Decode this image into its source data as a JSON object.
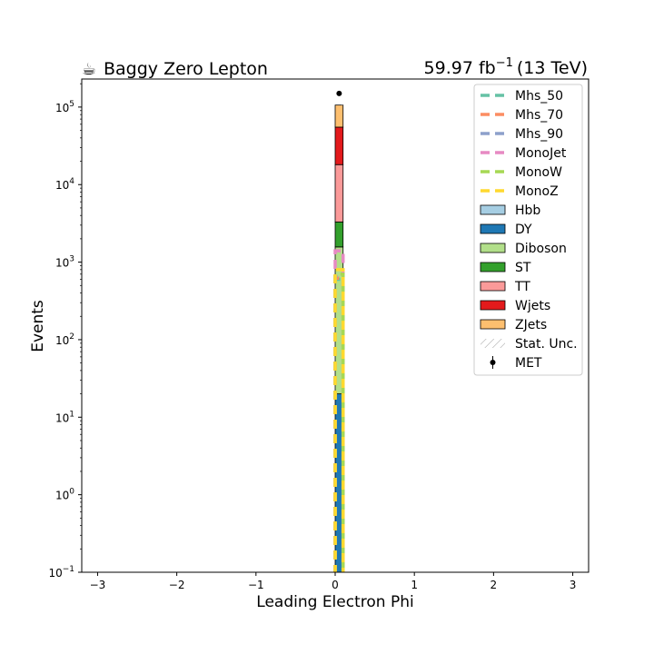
{
  "header": {
    "title_left": "Baggy Zero Lepton",
    "logo_icon": "☕",
    "lumi_value": "59.97",
    "lumi_unit": "fb",
    "lumi_exp": "−1",
    "energy": "(13 TeV)"
  },
  "chart_data": {
    "type": "bar",
    "title": "Baggy Zero Lepton",
    "xlabel": "Leading Electron Phi",
    "ylabel": "Events",
    "xlim": [
      -3.2,
      3.2
    ],
    "ylim": [
      0.1,
      230000
    ],
    "yscale": "log",
    "grid": false,
    "legend_position": "top-right",
    "x_ticks": [
      {
        "value": -3,
        "label": "−3"
      },
      {
        "value": -2,
        "label": "−2"
      },
      {
        "value": -1,
        "label": "−1"
      },
      {
        "value": 0,
        "label": "0"
      },
      {
        "value": 1,
        "label": "1"
      },
      {
        "value": 2,
        "label": "2"
      },
      {
        "value": 3,
        "label": "3"
      }
    ],
    "y_ticks": [
      {
        "value": 0.1,
        "base": "10",
        "exp": "−1"
      },
      {
        "value": 1,
        "base": "10",
        "exp": "0"
      },
      {
        "value": 10,
        "base": "10",
        "exp": "1"
      },
      {
        "value": 100,
        "base": "10",
        "exp": "2"
      },
      {
        "value": 1000,
        "base": "10",
        "exp": "3"
      },
      {
        "value": 10000,
        "base": "10",
        "exp": "4"
      },
      {
        "value": 100000,
        "base": "10",
        "exp": "5"
      }
    ],
    "bin": {
      "low": 0.0,
      "high": 0.1
    },
    "stack": [
      {
        "name": "Hbb",
        "value": 0,
        "color": "#a6cee3"
      },
      {
        "name": "DY",
        "value": 20,
        "color": "#1f78b4"
      },
      {
        "name": "Diboson",
        "value": 1550,
        "color": "#b2df8a"
      },
      {
        "name": "ST",
        "value": 1730,
        "color": "#33a02c"
      },
      {
        "name": "TT",
        "value": 14800,
        "color": "#fb9a99"
      },
      {
        "name": "Wjets",
        "value": 37000,
        "color": "#e31a1c"
      },
      {
        "name": "ZJets",
        "value": 51000,
        "color": "#fdbf6f"
      }
    ],
    "signals": [
      {
        "name": "Mhs_50",
        "value": 600,
        "color": "#66c2a5"
      },
      {
        "name": "Mhs_70",
        "value": 620,
        "color": "#fc8d62"
      },
      {
        "name": "Mhs_90",
        "value": 650,
        "color": "#8da0cb"
      },
      {
        "name": "MonoJet",
        "value": 1400,
        "color": "#e78ac3"
      },
      {
        "name": "MonoW",
        "value": 700,
        "color": "#a6d854"
      },
      {
        "name": "MonoZ",
        "value": 800,
        "color": "#ffd92f"
      }
    ],
    "data_points": [
      {
        "name": "MET",
        "x": 0.05,
        "y": 150000
      }
    ],
    "legend": [
      {
        "label": "Mhs_50",
        "kind": "line",
        "color": "#66c2a5"
      },
      {
        "label": "Mhs_70",
        "kind": "line",
        "color": "#fc8d62"
      },
      {
        "label": "Mhs_90",
        "kind": "line",
        "color": "#8da0cb"
      },
      {
        "label": "MonoJet",
        "kind": "line",
        "color": "#e78ac3"
      },
      {
        "label": "MonoW",
        "kind": "line",
        "color": "#a6d854"
      },
      {
        "label": "MonoZ",
        "kind": "line",
        "color": "#ffd92f"
      },
      {
        "label": "Hbb",
        "kind": "patch",
        "color": "#a6cee3"
      },
      {
        "label": "DY",
        "kind": "patch",
        "color": "#1f78b4"
      },
      {
        "label": "Diboson",
        "kind": "patch",
        "color": "#b2df8a"
      },
      {
        "label": "ST",
        "kind": "patch",
        "color": "#33a02c"
      },
      {
        "label": "TT",
        "kind": "patch",
        "color": "#fb9a99"
      },
      {
        "label": "Wjets",
        "kind": "patch",
        "color": "#e31a1c"
      },
      {
        "label": "ZJets",
        "kind": "patch",
        "color": "#fdbf6f"
      },
      {
        "label": "Stat. Unc.",
        "kind": "hatch",
        "color": "#999999"
      },
      {
        "label": "MET",
        "kind": "marker",
        "color": "#000000"
      }
    ]
  }
}
